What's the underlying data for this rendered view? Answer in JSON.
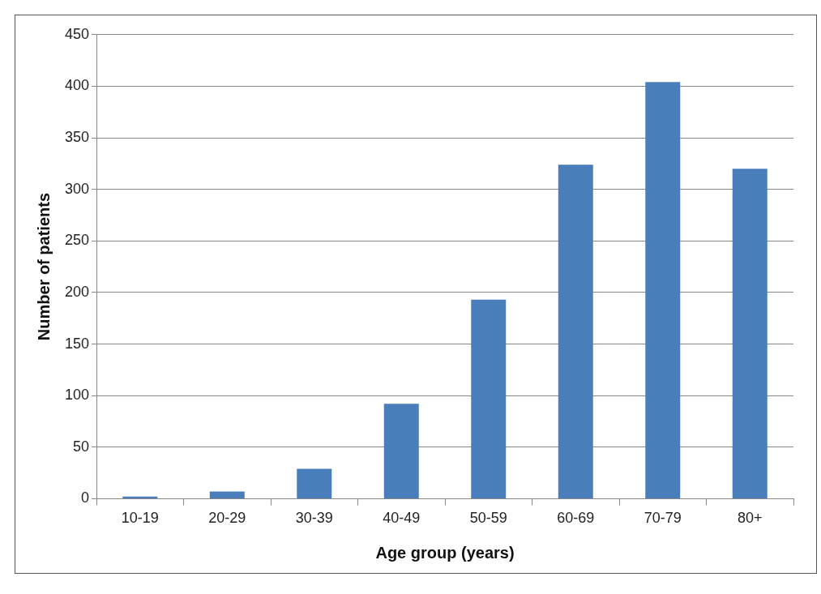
{
  "chart_data": {
    "type": "bar",
    "xlabel": "Age group (years)",
    "ylabel": "Number of patients",
    "categories": [
      "10-19",
      "20-29",
      "30-39",
      "40-49",
      "50-59",
      "60-69",
      "70-79",
      "80+"
    ],
    "values": [
      2,
      7,
      29,
      92,
      193,
      324,
      404,
      320
    ],
    "color": "#4a7ebb",
    "ylim": [
      0,
      450
    ],
    "yticks": [
      0,
      50,
      100,
      150,
      200,
      250,
      300,
      350,
      400,
      450
    ],
    "grid": "y",
    "legend": false
  }
}
